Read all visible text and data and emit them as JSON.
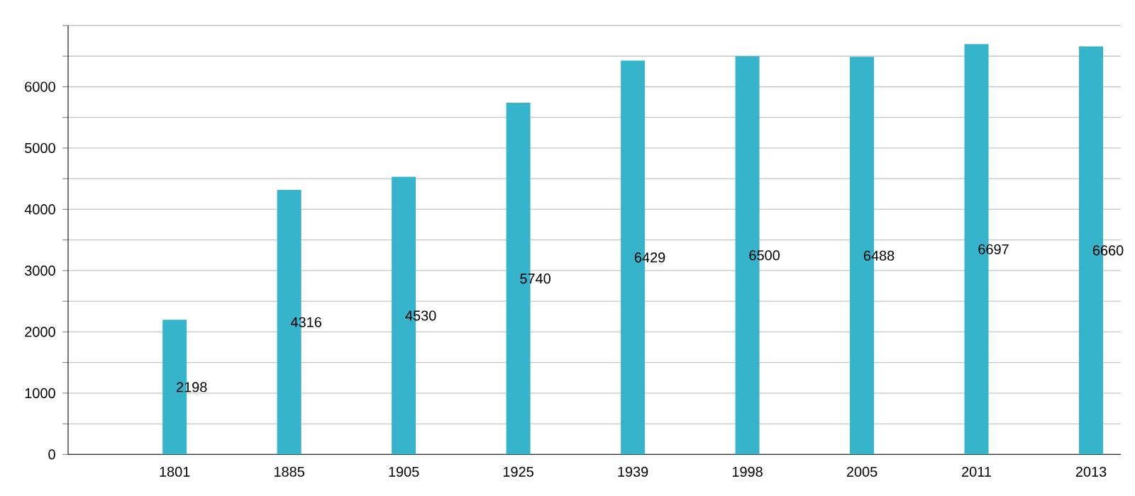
{
  "chart_data": {
    "type": "bar",
    "categories": [
      "1801",
      "1885",
      "1905",
      "1925",
      "1939",
      "1998",
      "2005",
      "2011",
      "2013"
    ],
    "values": [
      2198,
      4316,
      4530,
      5740,
      6429,
      6500,
      6488,
      6697,
      6660
    ],
    "color": "#36b4cc",
    "data_labels": true,
    "ylim": [
      0,
      7000
    ],
    "yticks": [
      0,
      {
        "value": 500,
        "label": null
      },
      1000,
      {
        "value": 1500,
        "label": null
      },
      2000,
      {
        "value": 2500,
        "label": null
      },
      3000,
      {
        "value": 3500,
        "label": null
      },
      4000,
      {
        "value": 4500,
        "label": null
      },
      5000,
      {
        "value": 5500,
        "label": null
      },
      6000,
      {
        "value": 6500,
        "label": null
      },
      {
        "value": 7000,
        "label": null
      }
    ],
    "grid": "y"
  }
}
